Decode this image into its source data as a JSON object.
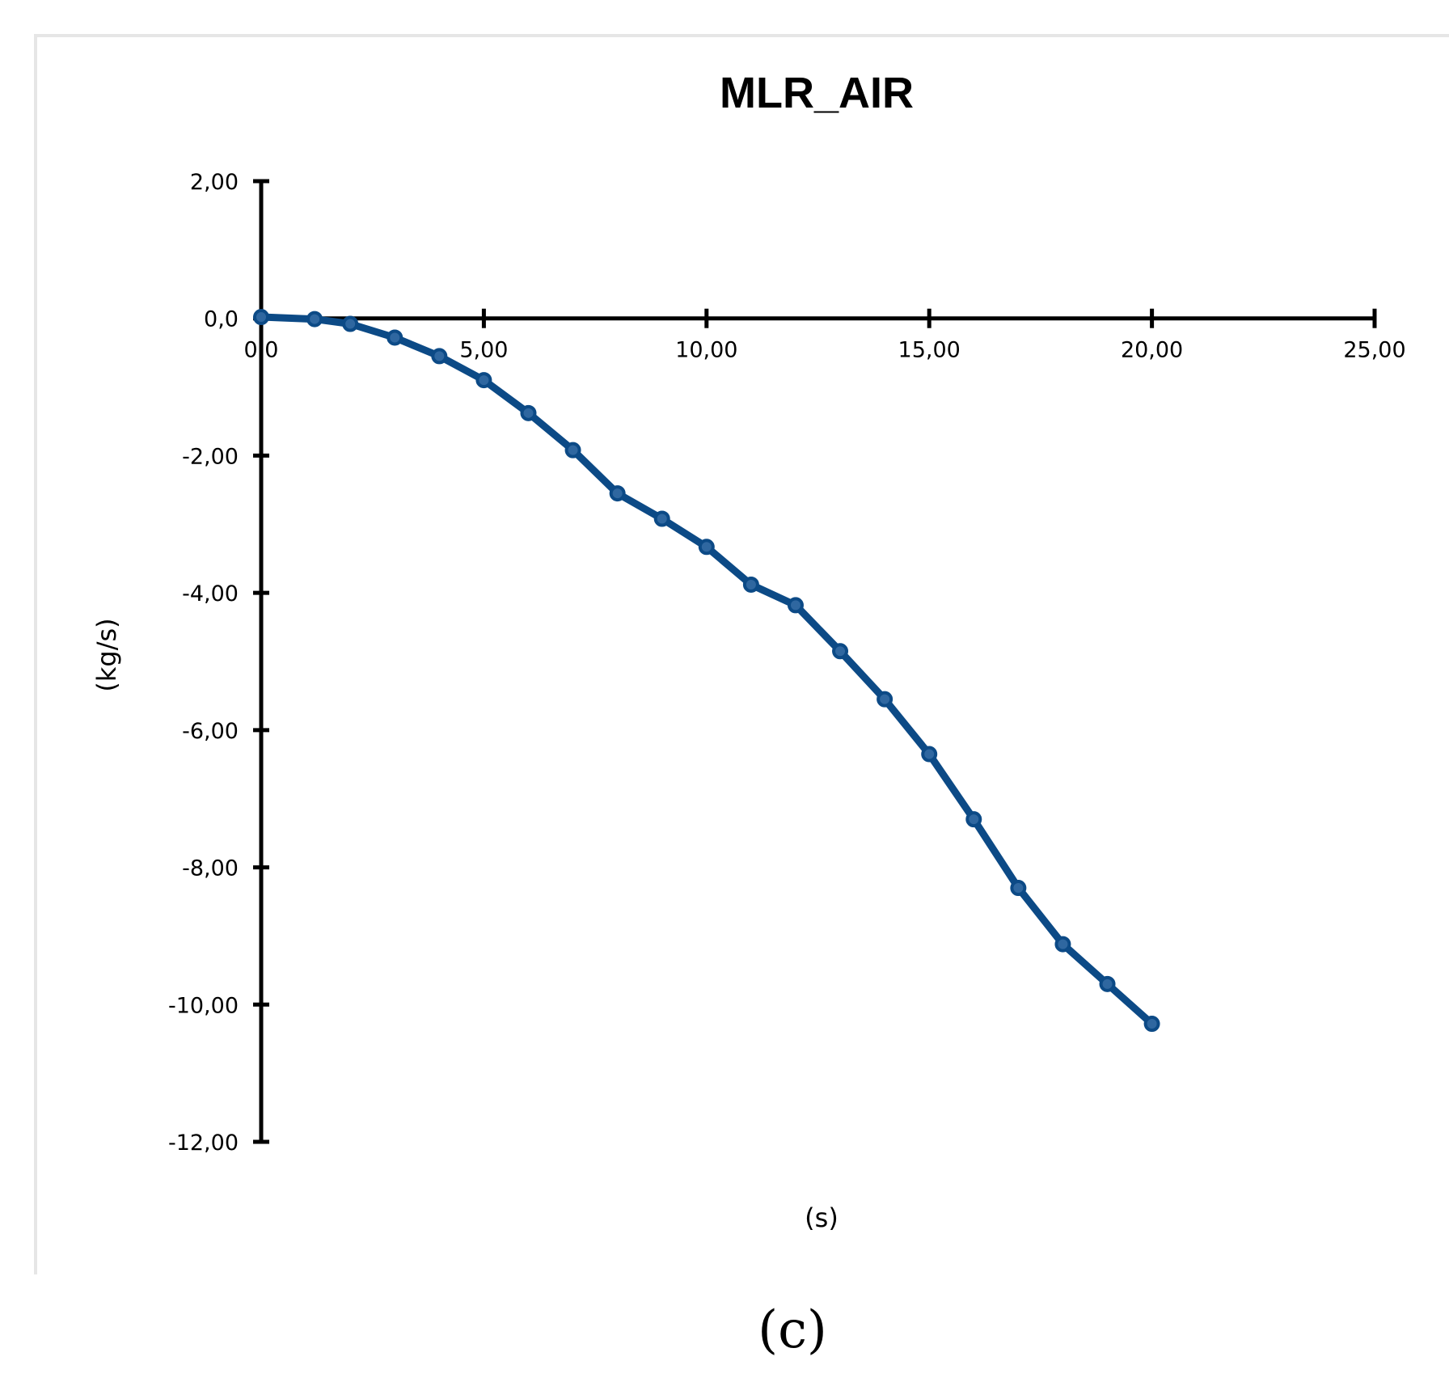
{
  "chart_data": {
    "type": "line",
    "title": "MLR_AIR",
    "xlabel": "(s)",
    "ylabel": "(kg/s)",
    "xlim": [
      0,
      25
    ],
    "ylim": [
      -12,
      2
    ],
    "grid": false,
    "x_tick_labels": [
      "0,0",
      "5,00",
      "10,00",
      "15,00",
      "20,00",
      "25,00"
    ],
    "y_tick_labels": [
      "2,00",
      "0,0",
      "-2,00",
      "-4,00",
      "-6,00",
      "-8,00",
      "-10,00",
      "-12,00"
    ],
    "series": [
      {
        "color": "#0c4a86",
        "x": [
          0,
          1.2,
          2,
          3,
          4,
          5,
          6,
          7,
          8,
          9,
          10,
          11,
          12,
          13,
          14,
          15,
          16,
          17,
          18,
          19,
          20
        ],
        "y": [
          0.02,
          -0.01,
          -0.08,
          -0.28,
          -0.55,
          -0.9,
          -1.38,
          -1.92,
          -2.55,
          -2.92,
          -3.33,
          -3.88,
          -4.18,
          -4.85,
          -5.55,
          -6.35,
          -7.3,
          -8.3,
          -9.12,
          -9.7,
          -10.28
        ]
      }
    ]
  },
  "caption": "(c)"
}
